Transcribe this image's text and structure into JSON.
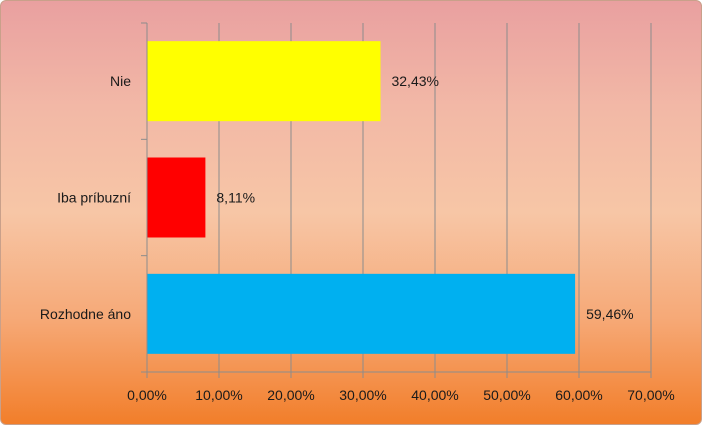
{
  "chart_data": {
    "type": "bar",
    "orientation": "horizontal",
    "categories": [
      "Nie",
      "Iba príbuzní",
      "Rozhodne áno"
    ],
    "values": [
      32.43,
      8.11,
      59.46
    ],
    "data_labels": [
      "32,43%",
      "8,11%",
      "59,46%"
    ],
    "colors": [
      "#ffff00",
      "#ff0000",
      "#00b0f0"
    ],
    "xlim": [
      0,
      70
    ],
    "x_ticks": [
      0,
      10,
      20,
      30,
      40,
      50,
      60,
      70
    ],
    "x_tick_labels": [
      "0,00%",
      "10,00%",
      "20,00%",
      "30,00%",
      "40,00%",
      "50,00%",
      "60,00%",
      "70,00%"
    ],
    "grid": true,
    "legend": "none",
    "background": [
      "#e9a0a0",
      "#f27e2a"
    ]
  }
}
